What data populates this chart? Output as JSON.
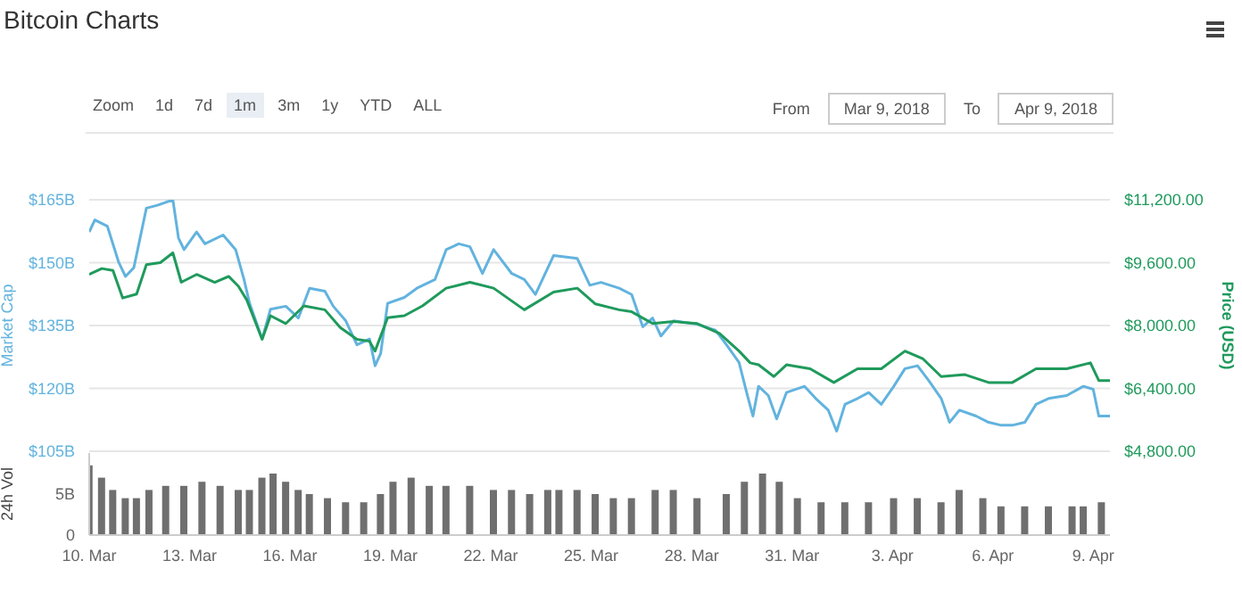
{
  "chart_data": [
    {
      "type": "line",
      "title": "Bitcoin Charts",
      "ylabel": "Market Cap",
      "y2label": "Price (USD)",
      "annotations": [
        "Zoom",
        "1d",
        "7d",
        "1m",
        "3m",
        "1y",
        "YTD",
        "ALL",
        "From",
        "Mar 9, 2018",
        "To",
        "Apr 9, 2018"
      ],
      "xlim": [
        "2018-03-10T00:00",
        "2018-04-09T12:00"
      ],
      "ylim": [
        105,
        165
      ],
      "yticks": [
        {
          "value": 105,
          "label": "$105B"
        },
        {
          "value": 120,
          "label": "$120B"
        },
        {
          "value": 135,
          "label": "$135B"
        },
        {
          "value": 150,
          "label": "$150B"
        },
        {
          "value": 165,
          "label": "$165B"
        }
      ],
      "y2lim": [
        4800,
        11200
      ],
      "y2ticks": [
        {
          "value": 4800,
          "label": "$4,800.00"
        },
        {
          "value": 6400,
          "label": "$6,400.00"
        },
        {
          "value": 8000,
          "label": "$8,000.00"
        },
        {
          "value": 9600,
          "label": "$9,600.00"
        },
        {
          "value": 11200,
          "label": "$11,200.00"
        }
      ],
      "grid": "y",
      "legend": false,
      "tick_labels": "y",
      "marker": "none",
      "series": [
        {
          "color": "#62b3de",
          "x": [
            "2018-03-10T00:00",
            "2018-03-10T04:00",
            "2018-03-10T13:00",
            "2018-03-10T21:00",
            "2018-03-11T02:00",
            "2018-03-11T08:00",
            "2018-03-11T17:00",
            "2018-03-12T01:00",
            "2018-03-12T12:00",
            "2018-03-12T16:00",
            "2018-03-12T20:00",
            "2018-03-13T05:00",
            "2018-03-13T11:00",
            "2018-03-14T00:00",
            "2018-03-14T09:00",
            "2018-03-14T15:00",
            "2018-03-14T19:00",
            "2018-03-15T04:00",
            "2018-03-15T10:00",
            "2018-03-15T21:00",
            "2018-03-16T06:00",
            "2018-03-16T14:00",
            "2018-03-17T01:00",
            "2018-03-17T07:00",
            "2018-03-17T16:00",
            "2018-03-18T00:00",
            "2018-03-18T09:00",
            "2018-03-18T13:00",
            "2018-03-18T17:00",
            "2018-03-18T22:00",
            "2018-03-19T10:00",
            "2018-03-19T19:00",
            "2018-03-20T08:00",
            "2018-03-20T16:00",
            "2018-03-21T01:00",
            "2018-03-21T09:00",
            "2018-03-21T18:00",
            "2018-03-22T02:00",
            "2018-03-22T15:00",
            "2018-03-23T00:00",
            "2018-03-23T08:00",
            "2018-03-23T21:00",
            "2018-03-24T14:00",
            "2018-03-24T23:00",
            "2018-03-25T07:00",
            "2018-03-25T20:00",
            "2018-03-26T05:00",
            "2018-03-26T13:00",
            "2018-03-26T20:00",
            "2018-03-27T02:00",
            "2018-03-27T11:00",
            "2018-03-28T04:00",
            "2018-03-28T17:00",
            "2018-03-29T01:00",
            "2018-03-29T10:00",
            "2018-03-29T16:00",
            "2018-03-29T20:00",
            "2018-03-30T00:00",
            "2018-03-30T07:00",
            "2018-03-30T13:00",
            "2018-03-30T20:00",
            "2018-03-31T09:00",
            "2018-03-31T17:00",
            "2018-04-01T02:00",
            "2018-04-01T08:00",
            "2018-04-01T14:00",
            "2018-04-01T23:00",
            "2018-04-02T07:00",
            "2018-04-02T16:00",
            "2018-04-03T01:00",
            "2018-04-03T09:00",
            "2018-04-03T18:00",
            "2018-04-04T02:00",
            "2018-04-04T11:00",
            "2018-04-04T17:00",
            "2018-04-05T00:00",
            "2018-04-05T12:00",
            "2018-04-05T21:00",
            "2018-04-06T06:00",
            "2018-04-06T14:00",
            "2018-04-06T23:00",
            "2018-04-07T07:00",
            "2018-04-07T16:00",
            "2018-04-08T05:00",
            "2018-04-08T17:00",
            "2018-04-09T00:00",
            "2018-04-09T04:00",
            "2018-04-09T12:00"
          ],
          "values": [
            157.3,
            160.2,
            158.7,
            150.2,
            146.7,
            148.8,
            163,
            163.7,
            165,
            155.9,
            153.1,
            157.3,
            154.5,
            156.6,
            153.1,
            146,
            140.3,
            131.8,
            138.9,
            139.6,
            136.8,
            143.9,
            143.2,
            139.6,
            136.1,
            130.4,
            131.8,
            125.4,
            128.3,
            140.3,
            141.7,
            143.9,
            146,
            153.1,
            154.5,
            153.8,
            147.4,
            153.1,
            147.4,
            146,
            142.4,
            151.7,
            151,
            144.6,
            145.3,
            143.9,
            142.4,
            134.7,
            136.8,
            132.5,
            136.1,
            135.3,
            133.9,
            130.4,
            126.2,
            118.3,
            113.4,
            120.5,
            118.3,
            112.7,
            119,
            120.5,
            117.6,
            114.8,
            109.8,
            116.2,
            117.6,
            119,
            116.2,
            120.5,
            124.7,
            125.4,
            121.9,
            117.6,
            111.9,
            114.8,
            113.4,
            111.9,
            111.2,
            111.2,
            111.9,
            116.2,
            117.6,
            118.3,
            120.5,
            119.8,
            113.4,
            113.4
          ]
        },
        {
          "color": "#1f9a5c",
          "axis": "y2",
          "x": [
            "2018-03-10T00:00",
            "2018-03-10T09:00",
            "2018-03-10T17:00",
            "2018-03-11T00:00",
            "2018-03-11T10:00",
            "2018-03-11T17:00",
            "2018-03-12T03:00",
            "2018-03-12T12:00",
            "2018-03-12T18:00",
            "2018-03-13T05:00",
            "2018-03-13T18:00",
            "2018-03-14T04:00",
            "2018-03-14T11:00",
            "2018-03-14T17:00",
            "2018-03-15T04:00",
            "2018-03-15T10:00",
            "2018-03-15T21:00",
            "2018-03-16T10:00",
            "2018-03-17T01:00",
            "2018-03-17T12:00",
            "2018-03-18T00:00",
            "2018-03-18T09:00",
            "2018-03-18T13:00",
            "2018-03-18T22:00",
            "2018-03-19T10:00",
            "2018-03-19T23:00",
            "2018-03-20T16:00",
            "2018-03-21T09:00",
            "2018-03-22T02:00",
            "2018-03-23T00:00",
            "2018-03-23T21:00",
            "2018-03-24T14:00",
            "2018-03-25T03:00",
            "2018-03-25T20:00",
            "2018-03-26T05:00",
            "2018-03-26T20:00",
            "2018-03-27T11:00",
            "2018-03-28T04:00",
            "2018-03-28T20:00",
            "2018-03-29T10:00",
            "2018-03-29T18:00",
            "2018-03-30T00:00",
            "2018-03-30T11:00",
            "2018-03-30T20:00",
            "2018-03-31T13:00",
            "2018-04-01T06:00",
            "2018-04-01T23:00",
            "2018-04-02T16:00",
            "2018-04-03T09:00",
            "2018-04-03T22:00",
            "2018-04-04T11:00",
            "2018-04-05T04:00",
            "2018-04-05T21:00",
            "2018-04-06T14:00",
            "2018-04-07T07:00",
            "2018-04-08T05:00",
            "2018-04-08T22:00",
            "2018-04-09T04:00",
            "2018-04-09T12:00"
          ],
          "values": [
            9300,
            9450,
            9400,
            8700,
            8800,
            9550,
            9600,
            9850,
            9100,
            9300,
            9100,
            9250,
            9000,
            8650,
            7650,
            8250,
            8050,
            8500,
            8400,
            7950,
            7650,
            7600,
            7350,
            8200,
            8250,
            8500,
            8950,
            9100,
            8950,
            8400,
            8850,
            8950,
            8550,
            8400,
            8350,
            8050,
            8100,
            8050,
            7800,
            7350,
            7050,
            7000,
            6700,
            7000,
            6900,
            6550,
            6900,
            6900,
            7350,
            7150,
            6700,
            6750,
            6550,
            6550,
            6900,
            6900,
            7050,
            6600,
            6600
          ]
        }
      ]
    },
    {
      "type": "bar",
      "ylabel": "24h Vol",
      "xlim": [
        "2018-03-10T00:00",
        "2018-04-09T12:00"
      ],
      "xticks": [
        {
          "value": "2018-03-10T00:00",
          "label": "10. Mar"
        },
        {
          "value": "2018-03-13T00:00",
          "label": "13. Mar"
        },
        {
          "value": "2018-03-16T00:00",
          "label": "16. Mar"
        },
        {
          "value": "2018-03-19T00:00",
          "label": "19. Mar"
        },
        {
          "value": "2018-03-22T00:00",
          "label": "22. Mar"
        },
        {
          "value": "2018-03-25T00:00",
          "label": "25. Mar"
        },
        {
          "value": "2018-03-28T00:00",
          "label": "28. Mar"
        },
        {
          "value": "2018-03-31T00:00",
          "label": "31. Mar"
        },
        {
          "value": "2018-04-03T00:00",
          "label": "3. Apr"
        },
        {
          "value": "2018-04-06T00:00",
          "label": "6. Apr"
        },
        {
          "value": "2018-04-09T00:00",
          "label": "9. Apr"
        }
      ],
      "ylim": [
        0,
        10
      ],
      "yticks": [
        {
          "value": 0,
          "label": "0"
        },
        {
          "value": 5,
          "label": "5B"
        }
      ],
      "legend": false,
      "series": [
        {
          "color": "#6f6f6f",
          "x": [
            "2018-03-10T00:00",
            "2018-03-10T09:00",
            "2018-03-10T17:00",
            "2018-03-11T02:00",
            "2018-03-11T10:00",
            "2018-03-11T19:00",
            "2018-03-12T07:00",
            "2018-03-12T20:00",
            "2018-03-13T09:00",
            "2018-03-13T22:00",
            "2018-03-14T11:00",
            "2018-03-14T19:00",
            "2018-03-15T04:00",
            "2018-03-15T12:00",
            "2018-03-15T21:00",
            "2018-03-16T06:00",
            "2018-03-16T14:00",
            "2018-03-17T03:00",
            "2018-03-17T16:00",
            "2018-03-18T05:00",
            "2018-03-18T17:00",
            "2018-03-19T02:00",
            "2018-03-19T15:00",
            "2018-03-20T04:00",
            "2018-03-20T16:00",
            "2018-03-21T09:00",
            "2018-03-22T02:00",
            "2018-03-22T15:00",
            "2018-03-23T04:00",
            "2018-03-23T17:00",
            "2018-03-24T01:00",
            "2018-03-24T14:00",
            "2018-03-25T03:00",
            "2018-03-25T16:00",
            "2018-03-26T05:00",
            "2018-03-26T22:00",
            "2018-03-27T11:00",
            "2018-03-28T04:00",
            "2018-03-29T01:00",
            "2018-03-29T14:00",
            "2018-03-30T03:00",
            "2018-03-30T15:00",
            "2018-03-31T04:00",
            "2018-03-31T21:00",
            "2018-04-01T14:00",
            "2018-04-02T07:00",
            "2018-04-03T01:00",
            "2018-04-03T18:00",
            "2018-04-04T11:00",
            "2018-04-05T00:00",
            "2018-04-05T17:00",
            "2018-04-06T06:00",
            "2018-04-06T23:00",
            "2018-04-07T16:00",
            "2018-04-08T09:00",
            "2018-04-08T17:00",
            "2018-04-09T06:00"
          ],
          "values": [
            8.5,
            7,
            5.5,
            4.5,
            4.5,
            5.5,
            6,
            6,
            6.5,
            6,
            5.5,
            5.5,
            7,
            7.5,
            6.5,
            5.5,
            5,
            4.5,
            4,
            4,
            5,
            6.5,
            7,
            6,
            6,
            6,
            5.5,
            5.5,
            5,
            5.5,
            5.5,
            5.5,
            5,
            4.5,
            4.5,
            5.5,
            5.5,
            4.5,
            5,
            6.5,
            7.5,
            6.5,
            4.5,
            4,
            4,
            4,
            4.5,
            4.5,
            4,
            5.5,
            4.5,
            3.5,
            3.5,
            3.5,
            3.5,
            3.5,
            4
          ]
        }
      ]
    }
  ]
}
